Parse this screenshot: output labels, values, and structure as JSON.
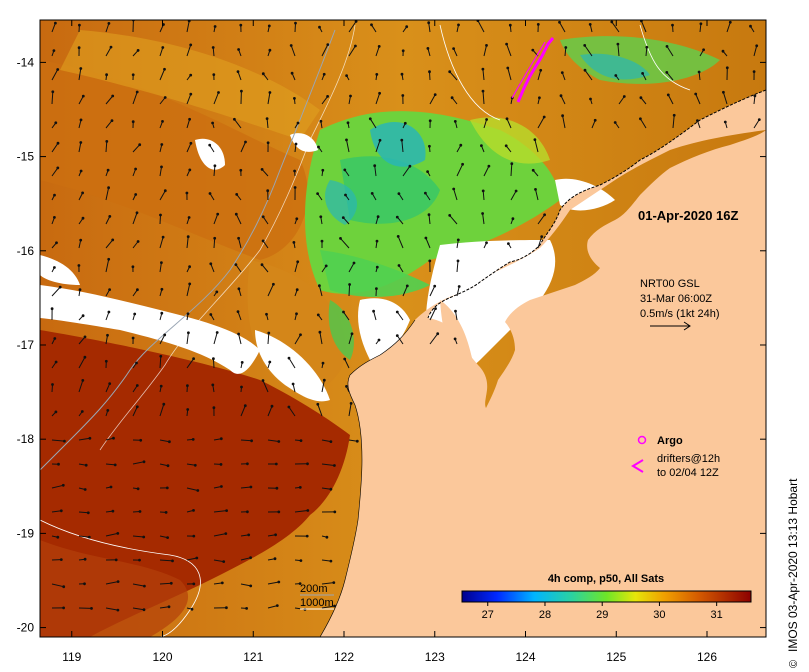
{
  "map": {
    "x_ticks": [
      "119",
      "120",
      "121",
      "122",
      "123",
      "124",
      "125",
      "126"
    ],
    "y_ticks": [
      "-14",
      "-15",
      "-16",
      "-17",
      "-18",
      "-19",
      "-20"
    ],
    "x_range": [
      118.65,
      126.65
    ],
    "y_range": [
      -13.55,
      -20.1
    ],
    "colors": {
      "land": "#fbc89b",
      "cloud": "#ffffff",
      "warm": "#c05a08",
      "hot": "#a52a00",
      "mid": "#e9a51a",
      "cool_green": "#4cd24a",
      "cyan": "#2ab6b4",
      "drifter": "#ff00ff"
    }
  },
  "annotations": {
    "date": "01-Apr-2020 16Z",
    "current_title": "NRT00 GSL",
    "current_time": "31-Mar 06:00Z",
    "current_scale": "0.5m/s (1kt 24h)",
    "argo_label": "Argo",
    "drifters_line1": "drifters@12h",
    "drifters_line2": "to 02/04 12Z",
    "isobath_200": "200m",
    "isobath_1000": "1000m",
    "credit": "IMOS 03-Apr-2020 13:13 Hobart",
    "copyright": "©"
  },
  "colorbar": {
    "title": "4h comp, p50, All Sats",
    "ticks": [
      "27",
      "28",
      "29",
      "30",
      "31"
    ],
    "range": [
      26.55,
      31.6
    ]
  }
}
